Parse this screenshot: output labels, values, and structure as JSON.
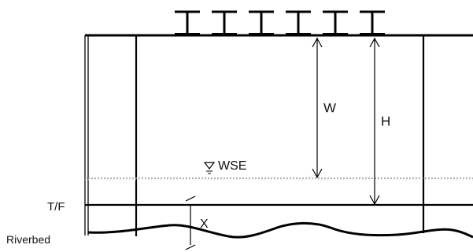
{
  "diagram": {
    "girder_count": 6,
    "labels": {
      "w": "W",
      "h": "H",
      "wse": "WSE",
      "tf": "T/F",
      "x": "X",
      "riverbed": "Riverbed"
    }
  }
}
